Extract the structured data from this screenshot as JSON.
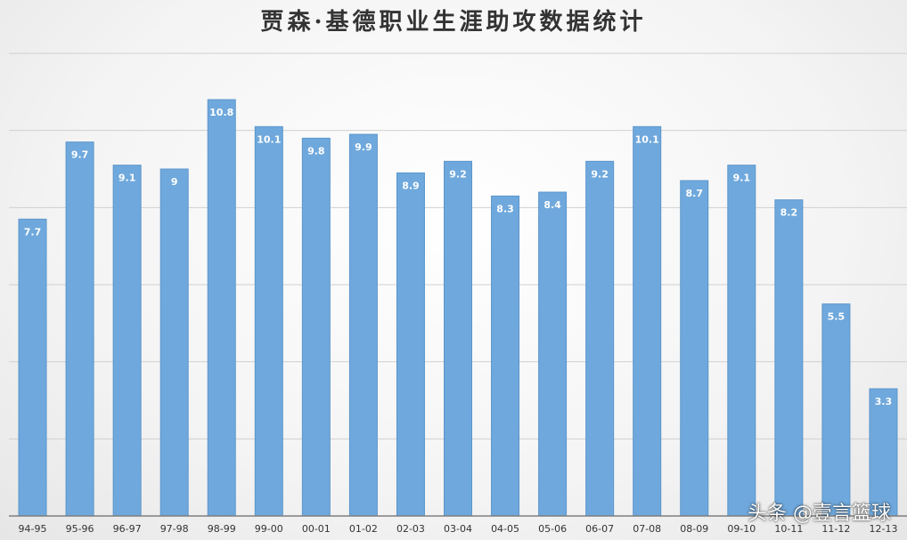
{
  "title": "贾森·基德职业生涯助攻数据统计",
  "watermark": "头条 @壹言篮球",
  "colors": {
    "bar": "#6fa8dc",
    "bar_edge": "#5b96cc",
    "grid": "#d0d0d0",
    "axis": "#7f7f7f"
  },
  "chart_data": {
    "type": "bar",
    "title": "贾森·基德职业生涯助攻数据统计",
    "xlabel": "",
    "ylabel": "",
    "ylim": [
      0,
      12
    ],
    "grid": true,
    "categories": [
      "94-95",
      "95-96",
      "96-97",
      "97-98",
      "98-99",
      "99-00",
      "00-01",
      "01-02",
      "02-03",
      "03-04",
      "04-05",
      "05-06",
      "06-07",
      "07-08",
      "08-09",
      "09-10",
      "10-11",
      "11-12",
      "12-13"
    ],
    "values": [
      7.7,
      9.7,
      9.1,
      9,
      10.8,
      10.1,
      9.8,
      9.9,
      8.9,
      9.2,
      8.3,
      8.4,
      9.2,
      10.1,
      8.7,
      9.1,
      8.2,
      5.5,
      3.3
    ]
  }
}
